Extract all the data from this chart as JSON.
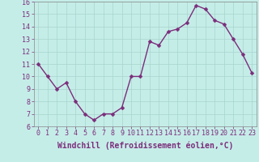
{
  "x": [
    0,
    1,
    2,
    3,
    4,
    5,
    6,
    7,
    8,
    9,
    10,
    11,
    12,
    13,
    14,
    15,
    16,
    17,
    18,
    19,
    20,
    21,
    22,
    23
  ],
  "y": [
    11,
    10,
    9,
    9.5,
    8,
    7,
    6.5,
    7,
    7,
    7.5,
    10,
    10,
    12.8,
    12.5,
    13.6,
    13.8,
    14.3,
    15.7,
    15.4,
    14.5,
    14.2,
    13,
    11.8,
    10.3
  ],
  "line_color": "#7B2D7B",
  "marker_color": "#7B2D7B",
  "bg_color": "#C5EDE8",
  "grid_color": "#A8D4CE",
  "xlabel": "Windchill (Refroidissement éolien,°C)",
  "ylim": [
    6,
    16
  ],
  "xlim_min": -0.5,
  "xlim_max": 23.5,
  "yticks": [
    6,
    7,
    8,
    9,
    10,
    11,
    12,
    13,
    14,
    15,
    16
  ],
  "xticks": [
    0,
    1,
    2,
    3,
    4,
    5,
    6,
    7,
    8,
    9,
    10,
    11,
    12,
    13,
    14,
    15,
    16,
    17,
    18,
    19,
    20,
    21,
    22,
    23
  ],
  "xlabel_fontsize": 7,
  "tick_fontsize": 6,
  "marker_size": 2.5,
  "linewidth": 1.0
}
